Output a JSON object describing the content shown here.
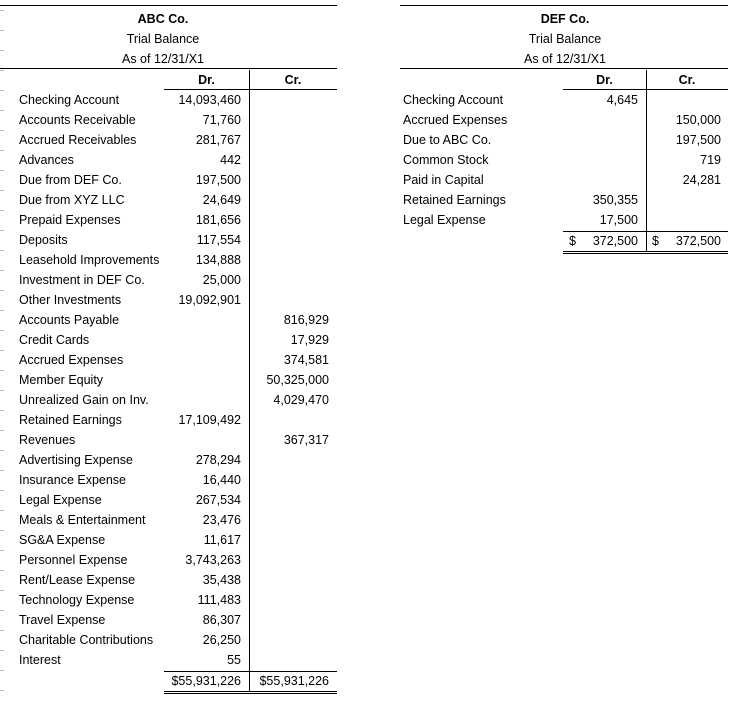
{
  "abc": {
    "title": "ABC Co.",
    "subtitle": "Trial Balance",
    "date": "As of 12/31/X1",
    "headers": {
      "dr": "Dr.",
      "cr": "Cr."
    },
    "rows": [
      [
        "Checking Account",
        "14,093,460",
        null
      ],
      [
        "Accounts Receivable",
        "71,760",
        null
      ],
      [
        "Accrued Receivables",
        "281,767",
        null
      ],
      [
        "Advances",
        "442",
        null
      ],
      [
        "Due from DEF Co.",
        "197,500",
        null
      ],
      [
        "Due from XYZ LLC",
        "24,649",
        null
      ],
      [
        "Prepaid Expenses",
        "181,656",
        null
      ],
      [
        "Deposits",
        "117,554",
        null
      ],
      [
        "Leasehold Improvements",
        "134,888",
        null
      ],
      [
        "Investment in DEF Co.",
        "25,000",
        null
      ],
      [
        "Other Investments",
        "19,092,901",
        null
      ],
      [
        "Accounts Payable",
        null,
        "816,929"
      ],
      [
        "Credit Cards",
        null,
        "17,929"
      ],
      [
        "Accrued Expenses",
        null,
        "374,581"
      ],
      [
        "Member Equity",
        null,
        "50,325,000"
      ],
      [
        "Unrealized Gain on Inv.",
        null,
        "4,029,470"
      ],
      [
        "Retained Earnings",
        "17,109,492",
        null
      ],
      [
        "Revenues",
        null,
        "367,317"
      ],
      [
        "Advertising Expense",
        "278,294",
        null
      ],
      [
        "Insurance Expense",
        "16,440",
        null
      ],
      [
        "Legal Expense",
        "267,534",
        null
      ],
      [
        "Meals & Entertainment",
        "23,476",
        null
      ],
      [
        "SG&A Expense",
        "11,617",
        null
      ],
      [
        "Personnel Expense",
        "3,743,263",
        null
      ],
      [
        "Rent/Lease Expense",
        "35,438",
        null
      ],
      [
        "Technology Expense",
        "111,483",
        null
      ],
      [
        "Travel Expense",
        "86,307",
        null
      ],
      [
        "Charitable Contributions",
        "26,250",
        null
      ],
      [
        "Interest",
        "55",
        null
      ]
    ],
    "totals": {
      "dr": "$55,931,226",
      "cr": "$55,931,226"
    }
  },
  "def": {
    "title": "DEF Co.",
    "subtitle": "Trial Balance",
    "date": "As of 12/31/X1",
    "headers": {
      "dr": "Dr.",
      "cr": "Cr."
    },
    "rows": [
      [
        "Checking Account",
        "4,645",
        null
      ],
      [
        "Accrued Expenses",
        null,
        "150,000"
      ],
      [
        "Due to ABC Co.",
        null,
        "197,500"
      ],
      [
        "Common Stock",
        null,
        "719"
      ],
      [
        "Paid in Capital",
        null,
        "24,281"
      ],
      [
        "Retained Earnings",
        "350,355",
        null
      ],
      [
        "Legal Expense",
        "17,500",
        null
      ]
    ],
    "totals": {
      "dr": {
        "currency": "$",
        "amount": "372,500"
      },
      "cr": {
        "currency": "$",
        "amount": "372,500"
      }
    }
  }
}
